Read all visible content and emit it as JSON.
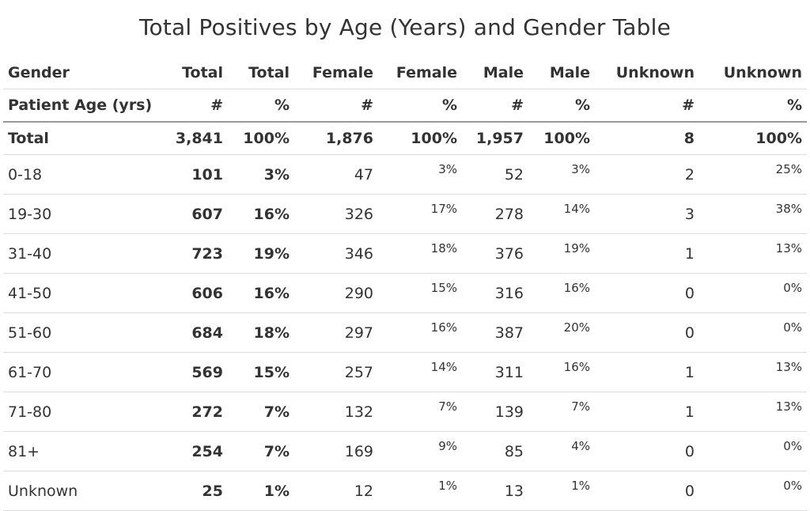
{
  "title": "Total Positives by Age (Years) and Gender Table",
  "header": {
    "row1": [
      "Gender",
      "Total",
      "Total",
      "Female",
      "Female",
      "Male",
      "Male",
      "Unknown",
      "Unknown"
    ],
    "row2": [
      "Patient Age (yrs)",
      "#",
      "%",
      "#",
      "%",
      "#",
      "%",
      "#",
      "%"
    ]
  },
  "rows": [
    {
      "age": "Total",
      "total_n": "3,841",
      "total_pct": "100%",
      "female_n": "1,876",
      "female_pct": "100%",
      "male_n": "1,957",
      "male_pct": "100%",
      "unknown_n": "8",
      "unknown_pct": "100%"
    },
    {
      "age": "0-18",
      "total_n": "101",
      "total_pct": "3%",
      "female_n": "47",
      "female_pct": "3%",
      "male_n": "52",
      "male_pct": "3%",
      "unknown_n": "2",
      "unknown_pct": "25%"
    },
    {
      "age": "19-30",
      "total_n": "607",
      "total_pct": "16%",
      "female_n": "326",
      "female_pct": "17%",
      "male_n": "278",
      "male_pct": "14%",
      "unknown_n": "3",
      "unknown_pct": "38%"
    },
    {
      "age": "31-40",
      "total_n": "723",
      "total_pct": "19%",
      "female_n": "346",
      "female_pct": "18%",
      "male_n": "376",
      "male_pct": "19%",
      "unknown_n": "1",
      "unknown_pct": "13%"
    },
    {
      "age": "41-50",
      "total_n": "606",
      "total_pct": "16%",
      "female_n": "290",
      "female_pct": "15%",
      "male_n": "316",
      "male_pct": "16%",
      "unknown_n": "0",
      "unknown_pct": "0%"
    },
    {
      "age": "51-60",
      "total_n": "684",
      "total_pct": "18%",
      "female_n": "297",
      "female_pct": "16%",
      "male_n": "387",
      "male_pct": "20%",
      "unknown_n": "0",
      "unknown_pct": "0%"
    },
    {
      "age": "61-70",
      "total_n": "569",
      "total_pct": "15%",
      "female_n": "257",
      "female_pct": "14%",
      "male_n": "311",
      "male_pct": "16%",
      "unknown_n": "1",
      "unknown_pct": "13%"
    },
    {
      "age": "71-80",
      "total_n": "272",
      "total_pct": "7%",
      "female_n": "132",
      "female_pct": "7%",
      "male_n": "139",
      "male_pct": "7%",
      "unknown_n": "1",
      "unknown_pct": "13%"
    },
    {
      "age": "81+",
      "total_n": "254",
      "total_pct": "7%",
      "female_n": "169",
      "female_pct": "9%",
      "male_n": "85",
      "male_pct": "4%",
      "unknown_n": "0",
      "unknown_pct": "0%"
    },
    {
      "age": "Unknown",
      "total_n": "25",
      "total_pct": "1%",
      "female_n": "12",
      "female_pct": "1%",
      "male_n": "13",
      "male_pct": "1%",
      "unknown_n": "0",
      "unknown_pct": "0%"
    }
  ]
}
